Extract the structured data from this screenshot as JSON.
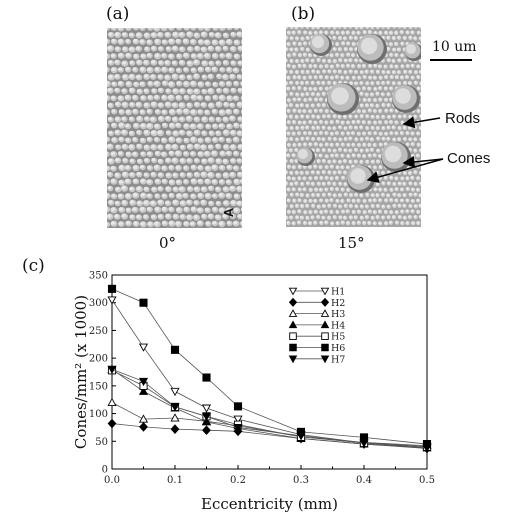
{
  "figure": {
    "panel_a_label": "(a)",
    "panel_b_label": "(b)",
    "panel_c_label": "(c)",
    "angle_a": "0°",
    "angle_b": "15°",
    "scale_bar_label": "10 um",
    "annotation_rods": "Rods",
    "annotation_cones": "Cones",
    "corner_mark": "A"
  },
  "chart_data": {
    "type": "line",
    "xlabel": "Eccentricity (mm)",
    "ylabel": "Cones/mm² (x 1000)",
    "xlim": [
      0.0,
      0.5
    ],
    "ylim": [
      0,
      350
    ],
    "xticks": [
      "0.0",
      "0.1",
      "0.2",
      "0.3",
      "0.4",
      "0.5"
    ],
    "yticks": [
      "0",
      "50",
      "100",
      "150",
      "200",
      "250",
      "300",
      "350"
    ],
    "legend_position": "top-right",
    "grid": false,
    "series": [
      {
        "name": "H1",
        "marker": "triangle-down-open",
        "x": [
          0,
          0.05,
          0.1,
          0.15,
          0.2,
          0.3,
          0.4,
          0.5
        ],
        "y": [
          305,
          220,
          140,
          110,
          90,
          62,
          47,
          40
        ]
      },
      {
        "name": "H2",
        "marker": "diamond-filled",
        "x": [
          0,
          0.05,
          0.1,
          0.15,
          0.2,
          0.3,
          0.4,
          0.5
        ],
        "y": [
          82,
          76,
          72,
          70,
          68,
          55,
          45,
          37
        ]
      },
      {
        "name": "H3",
        "marker": "triangle-up-open",
        "x": [
          0,
          0.05,
          0.1,
          0.15,
          0.2,
          0.3,
          0.4,
          0.5
        ],
        "y": [
          120,
          90,
          92,
          86,
          78,
          58,
          48,
          42
        ]
      },
      {
        "name": "H4",
        "marker": "triangle-up-filled",
        "x": [
          0,
          0.05,
          0.1,
          0.15,
          0.2,
          0.3,
          0.4,
          0.5
        ],
        "y": [
          180,
          140,
          110,
          85,
          73,
          55,
          45,
          38
        ]
      },
      {
        "name": "H5",
        "marker": "square-open",
        "x": [
          0,
          0.05,
          0.1,
          0.15,
          0.2,
          0.3,
          0.4,
          0.5
        ],
        "y": [
          178,
          150,
          112,
          95,
          80,
          58,
          47,
          40
        ]
      },
      {
        "name": "H6",
        "marker": "square-filled",
        "x": [
          0,
          0.05,
          0.1,
          0.15,
          0.2,
          0.3,
          0.4,
          0.5
        ],
        "y": [
          325,
          300,
          215,
          165,
          113,
          67,
          57,
          45
        ]
      },
      {
        "name": "H7",
        "marker": "triangle-down-filled",
        "x": [
          0,
          0.05,
          0.1,
          0.15,
          0.2,
          0.3,
          0.4,
          0.5
        ],
        "y": [
          180,
          158,
          112,
          95,
          75,
          60,
          47,
          38
        ]
      }
    ]
  }
}
